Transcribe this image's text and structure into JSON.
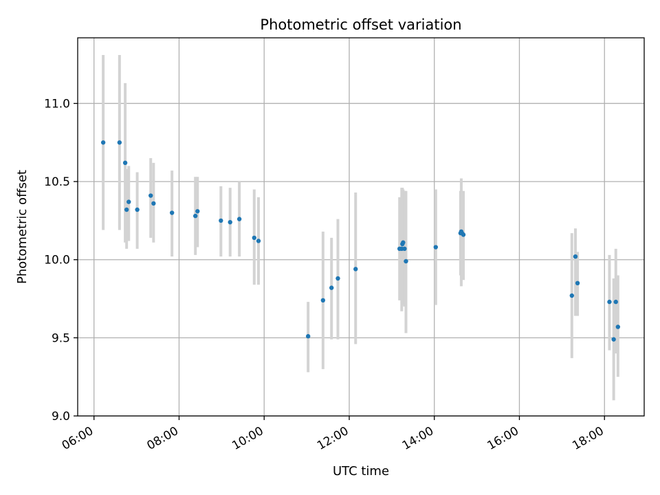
{
  "chart_data": {
    "type": "scatter",
    "title": "Photometric offset variation",
    "xlabel": "UTC time",
    "ylabel": "Photometric offset",
    "xlim": [
      "05:37",
      "18:56"
    ],
    "ylim": [
      9.0,
      11.42
    ],
    "x_ticks": [
      "06:00",
      "08:00",
      "10:00",
      "12:00",
      "14:00",
      "16:00",
      "18:00"
    ],
    "y_ticks": [
      "9.0",
      "9.5",
      "10.0",
      "10.5",
      "11.0"
    ],
    "grid": true,
    "colors": {
      "points": "#1f77b4",
      "errorbars": "#d3d3d3",
      "grid": "#b0b0b0"
    },
    "series": [
      {
        "x": [
          "06:13",
          "06:36",
          "06:44",
          "06:46",
          "06:49",
          "07:01",
          "07:20",
          "07:24",
          "07:50",
          "08:23",
          "08:26",
          "08:59",
          "09:12",
          "09:25",
          "09:46",
          "09:52",
          "11:02",
          "11:23",
          "11:35",
          "11:44",
          "12:09",
          "13:11",
          "13:14",
          "13:15",
          "13:16",
          "13:18",
          "13:20",
          "14:02",
          "14:37",
          "14:38",
          "14:39",
          "14:41",
          "17:14",
          "17:19",
          "17:22",
          "18:07",
          "18:13",
          "18:16",
          "18:19"
        ],
        "y": [
          10.75,
          10.75,
          10.62,
          10.32,
          10.37,
          10.32,
          10.41,
          10.36,
          10.3,
          10.28,
          10.31,
          10.25,
          10.24,
          10.26,
          10.14,
          10.12,
          9.51,
          9.74,
          9.82,
          9.88,
          9.94,
          10.07,
          10.07,
          10.1,
          10.11,
          10.07,
          9.99,
          10.08,
          10.17,
          10.18,
          10.17,
          10.16,
          9.77,
          10.02,
          9.85,
          9.73,
          9.49,
          9.73,
          9.57
        ],
        "err_low": [
          10.19,
          10.19,
          10.11,
          10.07,
          10.12,
          10.07,
          10.14,
          10.11,
          10.02,
          10.03,
          10.08,
          10.02,
          10.02,
          10.02,
          9.84,
          9.84,
          9.28,
          9.3,
          9.49,
          9.49,
          9.46,
          9.74,
          9.67,
          9.71,
          9.72,
          9.7,
          9.53,
          9.71,
          9.9,
          9.83,
          9.88,
          9.87,
          9.37,
          9.64,
          9.64,
          9.42,
          9.1,
          9.4,
          9.25
        ],
        "err_high": [
          11.31,
          11.31,
          11.13,
          10.58,
          10.6,
          10.56,
          10.65,
          10.62,
          10.57,
          10.53,
          10.53,
          10.47,
          10.46,
          10.5,
          10.45,
          10.4,
          9.73,
          10.18,
          10.14,
          10.26,
          10.43,
          10.4,
          10.46,
          10.46,
          10.45,
          10.44,
          10.44,
          10.45,
          10.44,
          10.52,
          10.44,
          10.44,
          10.17,
          10.2,
          10.05,
          10.03,
          9.88,
          10.07,
          9.9
        ]
      }
    ]
  }
}
